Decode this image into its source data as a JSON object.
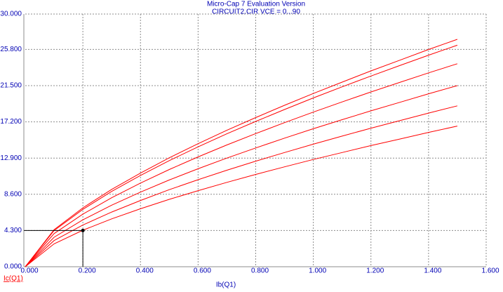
{
  "chart_data": {
    "type": "line",
    "title": "Micro-Cap 7 Evaluation Version",
    "subtitle": "CIRCUIT2.CIR VCE = 0...90",
    "x_label": "Ib(Q1)",
    "y_label": "Ic(Q1)",
    "x": [
      0,
      0.1,
      0.2,
      0.3,
      0.4,
      0.5,
      0.6,
      0.7,
      0.8,
      0.9,
      1.0,
      1.1,
      1.2,
      1.3,
      1.4,
      1.5
    ],
    "series": [
      {
        "color": "#ff0000",
        "values": [
          0,
          4.4,
          6.99,
          9.18,
          11.12,
          12.93,
          14.61,
          16.2,
          17.71,
          19.17,
          20.57,
          21.92,
          23.25,
          24.52,
          25.79,
          27.0
        ]
      },
      {
        "color": "#ff0000",
        "values": [
          0,
          4.29,
          6.81,
          8.94,
          10.84,
          12.6,
          14.23,
          15.78,
          17.25,
          18.67,
          20.04,
          21.36,
          22.64,
          23.88,
          25.12,
          26.3
        ]
      },
      {
        "color": "#ff0000",
        "values": [
          0,
          3.93,
          6.24,
          8.19,
          9.93,
          11.54,
          13.04,
          14.46,
          15.81,
          17.11,
          18.36,
          19.57,
          20.75,
          21.88,
          23.02,
          24.1
        ]
      },
      {
        "color": "#ff0000",
        "values": [
          0,
          3.5,
          5.57,
          7.31,
          8.86,
          10.3,
          11.63,
          12.9,
          14.1,
          15.27,
          16.38,
          17.46,
          18.51,
          19.52,
          20.53,
          21.5
        ]
      },
      {
        "color": "#ff0000",
        "values": [
          0,
          3.11,
          4.95,
          6.49,
          7.87,
          9.15,
          10.33,
          11.46,
          12.53,
          13.56,
          14.55,
          15.51,
          16.45,
          17.34,
          18.24,
          19.1
        ]
      },
      {
        "color": "#ff0000",
        "values": [
          0,
          2.72,
          4.33,
          5.68,
          6.88,
          8.0,
          9.03,
          10.02,
          10.96,
          11.86,
          12.73,
          13.56,
          14.38,
          15.16,
          15.95,
          16.7
        ]
      }
    ],
    "cursor": {
      "x": 0.2,
      "y": 4.3
    },
    "xlim": [
      0,
      1.6
    ],
    "ylim": [
      0,
      30
    ],
    "xticks": [
      {
        "value": 0,
        "label": "0.000"
      },
      {
        "value": 0.2,
        "label": "0.200"
      },
      {
        "value": 0.4,
        "label": "0.400"
      },
      {
        "value": 0.6,
        "label": "0.600"
      },
      {
        "value": 0.8,
        "label": "0.800"
      },
      {
        "value": 1.0,
        "label": "1.000"
      },
      {
        "value": 1.2,
        "label": "1.200"
      },
      {
        "value": 1.4,
        "label": "1.400"
      },
      {
        "value": 1.6,
        "label": "1.600"
      }
    ],
    "yticks": [
      {
        "value": 0,
        "label": "0.000"
      },
      {
        "value": 4.3,
        "label": "4.300"
      },
      {
        "value": 8.6,
        "label": "8.600"
      },
      {
        "value": 12.9,
        "label": "12.900"
      },
      {
        "value": 17.2,
        "label": "17.200"
      },
      {
        "value": 21.5,
        "label": "21.500"
      },
      {
        "value": 25.8,
        "label": "25.800"
      },
      {
        "value": 30,
        "label": "30.000"
      }
    ],
    "grid": true
  }
}
